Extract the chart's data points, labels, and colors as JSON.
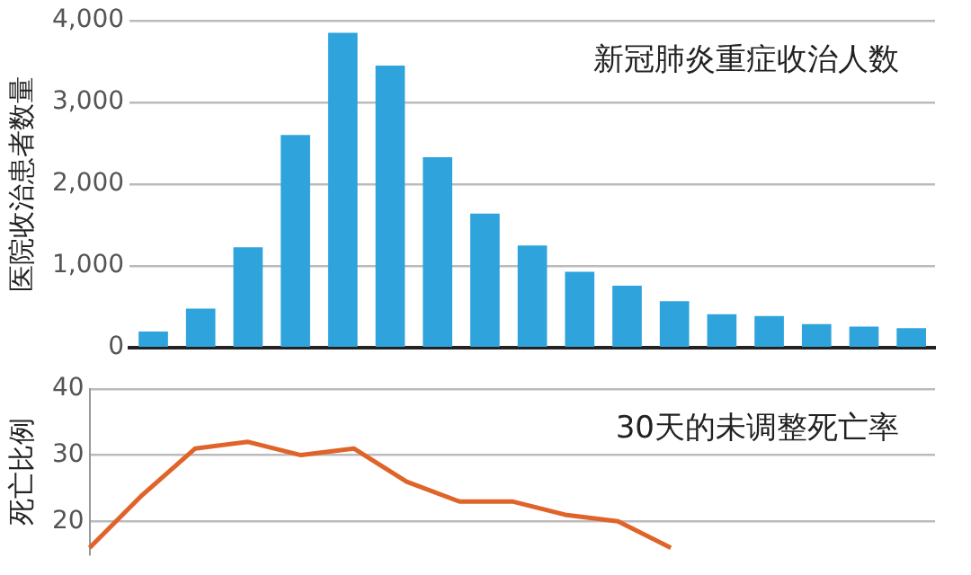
{
  "chart_data": [
    {
      "type": "bar",
      "title": "新冠肺炎重症收治人数",
      "ylabel": "医院收治患者数量",
      "categories": [
        null,
        null,
        null,
        null,
        null,
        null,
        null,
        null,
        null,
        null,
        null,
        null,
        null,
        null,
        null,
        null,
        null
      ],
      "color": "#2ea3dc",
      "values": [
        200,
        480,
        1230,
        2600,
        3850,
        3450,
        2330,
        1640,
        1250,
        930,
        760,
        570,
        410,
        390,
        290,
        260,
        240
      ],
      "ylim": [
        0,
        4000
      ],
      "yticks": [
        0,
        {
          "value": 1000,
          "label": "1,000"
        },
        {
          "value": 2000,
          "label": "2,000"
        },
        {
          "value": 3000,
          "label": "3,000"
        },
        {
          "value": 4000,
          "label": "4,000"
        }
      ],
      "grid": "y",
      "tick_labels": "y"
    },
    {
      "type": "line",
      "title": "30天的未调整死亡率",
      "ylabel": "死亡比例",
      "categories": [
        null,
        null,
        null,
        null,
        null,
        null,
        null,
        null,
        null,
        null,
        null,
        null,
        null,
        null,
        null,
        null,
        null
      ],
      "color": "#e0642a",
      "values": [
        16,
        24,
        31,
        32,
        30,
        31,
        26,
        23,
        23,
        21,
        20,
        16,
        null,
        null,
        null,
        null,
        null
      ],
      "ylim": [
        15,
        40
      ],
      "yticks": [
        20,
        30,
        40
      ],
      "grid": "y",
      "tick_labels": "y",
      "marker": "none"
    }
  ]
}
